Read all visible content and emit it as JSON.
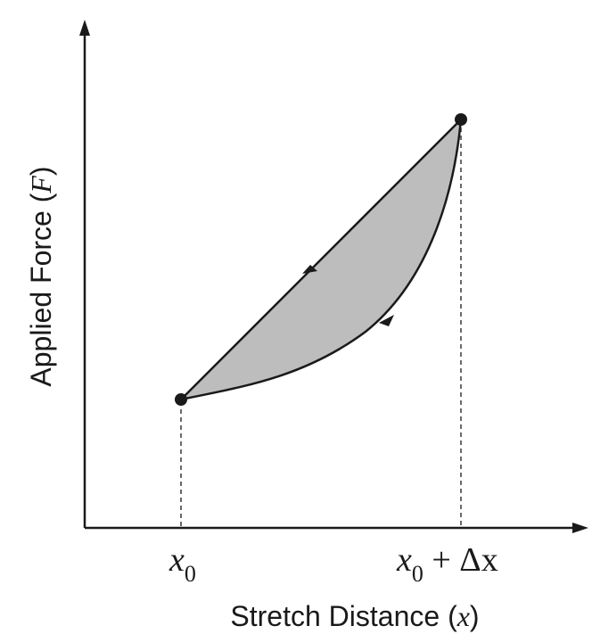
{
  "figure": {
    "ylabel_main": "Applied Force (",
    "ylabel_var": "F",
    "ylabel_close": ")",
    "xlabel_main": "Stretch Distance (",
    "xlabel_var": "x",
    "xlabel_close": ")",
    "tick_left_var": "x",
    "tick_left_sub": "0",
    "tick_right_var": "x",
    "tick_right_sub": "0",
    "tick_right_suffix": " + Δx"
  },
  "colors": {
    "ink": "#1a1a1a",
    "loop_fill": "#bdbdbd"
  }
}
